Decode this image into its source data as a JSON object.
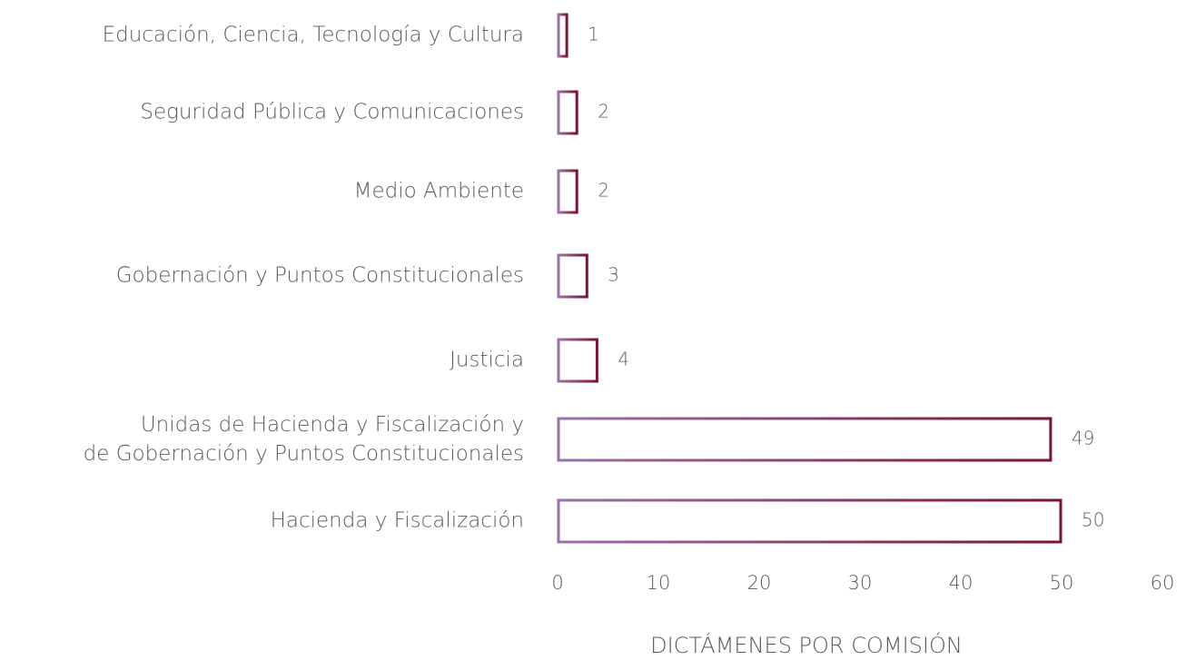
{
  "chart_data": {
    "type": "bar",
    "orientation": "horizontal",
    "categories": [
      "Educación, Ciencia, Tecnología y Cultura",
      "Seguridad Pública y Comunicaciones",
      "Medio Ambiente",
      "Gobernación y Puntos Constitucionales",
      "Justicia",
      [
        "Unidas de Hacienda y Fiscalización y",
        "de Gobernación y Puntos Constitucionales"
      ],
      "Hacienda y Fiscalización"
    ],
    "values": [
      1,
      2,
      2,
      3,
      4,
      49,
      50
    ],
    "color": [
      "#9b72aa",
      "#7d1131"
    ],
    "xlim": [
      0,
      60
    ],
    "xticks": [
      0,
      10,
      20,
      30,
      40,
      50,
      60
    ],
    "xlabel": "DICTÁMENES POR COMISIÓN",
    "grid": false
  }
}
